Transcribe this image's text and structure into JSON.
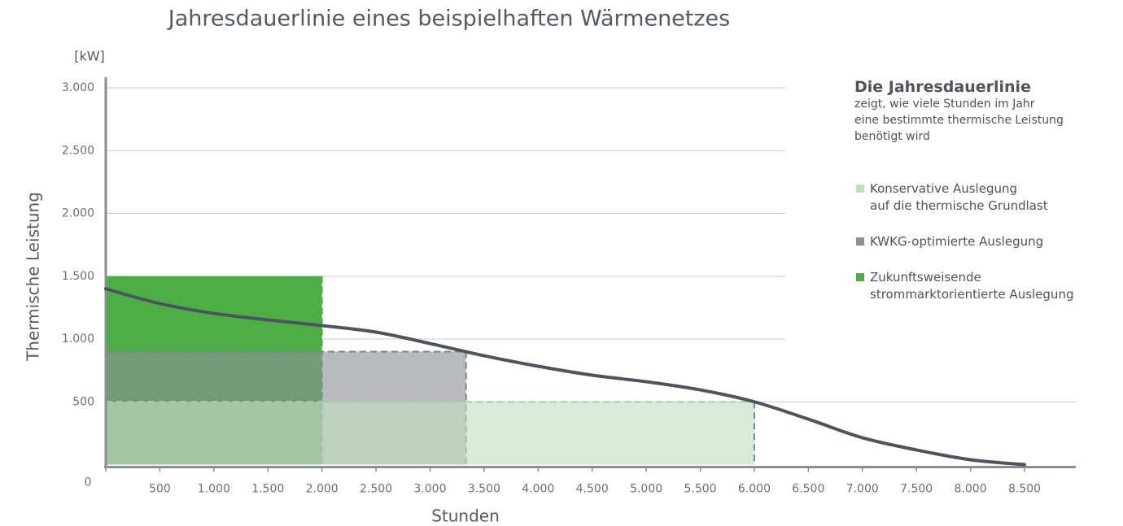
{
  "chart_data": {
    "type": "duration-curve",
    "title": "Jahresdauerlinie eines beispielhaften Wärmenetzes",
    "unit": "[kW]",
    "y_label": "Thermische Leistung",
    "x_label": "Stunden",
    "xlim": [
      0,
      8500
    ],
    "ylim": [
      0,
      3000
    ],
    "xticks": [
      0,
      500,
      {
        "value": 1000,
        "label": "1.000"
      },
      {
        "value": 1500,
        "label": "1.500"
      },
      {
        "value": 2000,
        "label": "2.000"
      },
      {
        "value": 2500,
        "label": "2.500"
      },
      {
        "value": 3000,
        "label": "3.000"
      },
      {
        "value": 3500,
        "label": "3.500"
      },
      {
        "value": 4000,
        "label": "4.000"
      },
      {
        "value": 4500,
        "label": "4.500"
      },
      {
        "value": 5000,
        "label": "5.000"
      },
      {
        "value": 5500,
        "label": "5.500"
      },
      {
        "value": 6000,
        "label": "6.000"
      },
      {
        "value": 6500,
        "label": "6.500"
      },
      {
        "value": 7000,
        "label": "7.000"
      },
      {
        "value": 7500,
        "label": "7.500"
      },
      {
        "value": 8000,
        "label": "8.000"
      },
      {
        "value": 8500,
        "label": "8.500"
      }
    ],
    "yticks": [
      500,
      {
        "value": 1000,
        "label": "1.000"
      },
      {
        "value": 1500,
        "label": "1.500"
      },
      {
        "value": 2000,
        "label": "2.000"
      },
      {
        "value": 2500,
        "label": "2.500"
      },
      {
        "value": 3000,
        "label": "3.000"
      }
    ],
    "grid": true,
    "series": [
      {
        "name": "Zukunftsweisende\nstrommarktorientierte Auslegung",
        "color": "#4caf46",
        "x": [
          0,
          2000
        ],
        "value": 1500
      },
      {
        "name": "KWKG-optimierte Auslegung",
        "color": "#8a9098",
        "x": [
          0,
          3333
        ],
        "value": 900
      },
      {
        "name": "Konservative Auslegung\nauf die thermische Grundlast",
        "color": "#c0dfbf",
        "x": [
          0,
          6000
        ],
        "value": 500
      }
    ],
    "curve": {
      "color": "#4d545c",
      "x": [
        0,
        500,
        1000,
        1500,
        2000,
        2500,
        3000,
        3500,
        4000,
        4500,
        5000,
        5500,
        6000,
        6500,
        7000,
        7500,
        8000,
        8500
      ],
      "values": [
        1400,
        1282,
        1204,
        1152,
        1107,
        1055,
        964,
        867,
        783,
        712,
        660,
        595,
        500,
        362,
        214,
        117,
        39,
        0
      ]
    },
    "info": {
      "title": "Die Jahresdauerlinie",
      "text": "zeigt, wie viele Stunden im Jahr\neine bestimmte thermische Leistung\nbenötigt wird"
    }
  }
}
